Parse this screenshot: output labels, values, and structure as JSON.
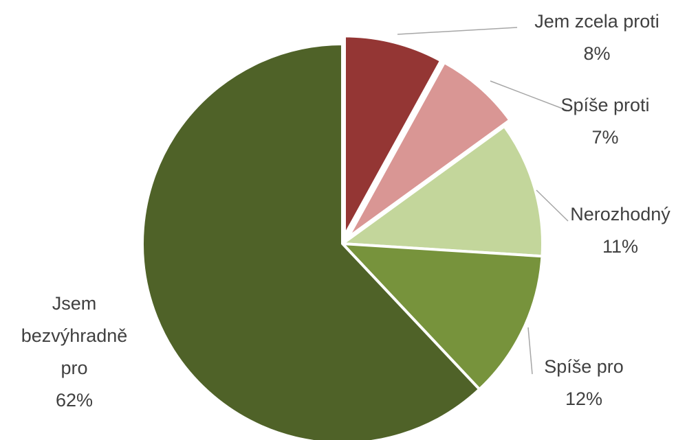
{
  "chart_data": {
    "type": "pie",
    "title": "",
    "slices": [
      {
        "label": "Jem zcela proti",
        "label_lines": [
          "Jem zcela proti"
        ],
        "value": 8,
        "value_label": "8%",
        "color": "#943634",
        "exploded": true
      },
      {
        "label": "Spíše proti",
        "label_lines": [
          "Spíše proti"
        ],
        "value": 7,
        "value_label": "7%",
        "color": "#d99694",
        "exploded": true
      },
      {
        "label": "Nerozhodný",
        "label_lines": [
          "Nerozhodný"
        ],
        "value": 11,
        "value_label": "11%",
        "color": "#c3d69b",
        "exploded": false
      },
      {
        "label": "Spíše pro",
        "label_lines": [
          "Spíše pro"
        ],
        "value": 12,
        "value_label": "12%",
        "color": "#77933c",
        "exploded": false
      },
      {
        "label": "Jsem bezvýhradně pro",
        "label_lines": [
          "Jsem",
          "bezvýhradně",
          "pro"
        ],
        "value": 62,
        "value_label": "62%",
        "color": "#4f6228",
        "exploded": false
      }
    ],
    "legend": "none",
    "data_labels": "outside with leader lines"
  }
}
